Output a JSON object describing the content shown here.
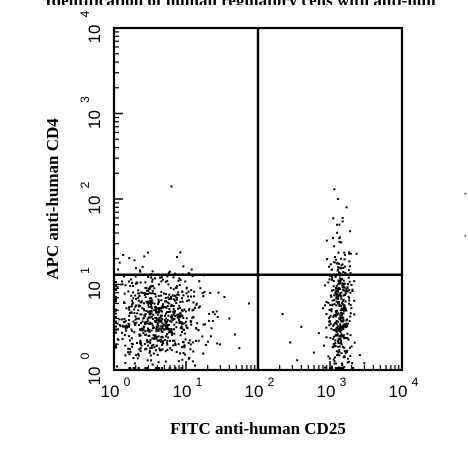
{
  "chart_data": {
    "type": "scatter",
    "title": "",
    "xlabel": "FITC anti-human CD25",
    "ylabel": "APC anti-human CD4",
    "x_scale": "log",
    "y_scale": "log",
    "xlim": [
      1,
      10000
    ],
    "ylim": [
      1,
      10000
    ],
    "x_tick_labels": [
      {
        "base": "10",
        "exp": "0"
      },
      {
        "base": "10",
        "exp": "1"
      },
      {
        "base": "10",
        "exp": "2"
      },
      {
        "base": "10",
        "exp": "3"
      },
      {
        "base": "10",
        "exp": "4"
      }
    ],
    "y_tick_labels": [
      {
        "base": "10",
        "exp": "0"
      },
      {
        "base": "10",
        "exp": "1"
      },
      {
        "base": "10",
        "exp": "2"
      },
      {
        "base": "10",
        "exp": "3"
      },
      {
        "base": "10",
        "exp": "4"
      }
    ],
    "quadrant_gates": {
      "x": 100,
      "y": 13
    },
    "grid": false,
    "legend": "none",
    "point_color": "#000000",
    "populations": [
      {
        "x_center": 4,
        "y_center": 4,
        "x_spread_decades": 0.32,
        "y_spread_decades": 0.26,
        "count": 700
      },
      {
        "x_center": 1400,
        "y_center": 5,
        "x_spread_decades": 0.09,
        "y_spread_decades": 0.38,
        "count": 380
      }
    ],
    "points": [
      {
        "x": 6.3,
        "y": 140
      },
      {
        "x": 1150,
        "y": 130
      },
      {
        "x": 1300,
        "y": 100
      },
      {
        "x": 1700,
        "y": 80
      },
      {
        "x": 1500,
        "y": 60
      },
      {
        "x": 1250,
        "y": 50
      },
      {
        "x": 1900,
        "y": 42
      },
      {
        "x": 1100,
        "y": 35
      },
      {
        "x": 400,
        "y": 3.2
      },
      {
        "x": 280,
        "y": 2.1
      },
      {
        "x": 600,
        "y": 1.6
      },
      {
        "x": 220,
        "y": 4.5
      },
      {
        "x": 700,
        "y": 2.7
      },
      {
        "x": 350,
        "y": 1.3
      },
      {
        "x": 40,
        "y": 4.0
      },
      {
        "x": 55,
        "y": 1.8
      },
      {
        "x": 75,
        "y": 6.0
      },
      {
        "x": 48,
        "y": 2.6
      },
      {
        "x": 1.2,
        "y": 18
      },
      {
        "x": 2.5,
        "y": 16
      },
      {
        "x": 7.5,
        "y": 21
      },
      {
        "x": 12,
        "y": 15
      },
      {
        "x": 1.1,
        "y": 1.1
      },
      {
        "x": 2.2,
        "y": 1.05
      },
      {
        "x": 3000,
        "y": 1.2
      },
      {
        "x": 2600,
        "y": 1.5
      }
    ]
  }
}
